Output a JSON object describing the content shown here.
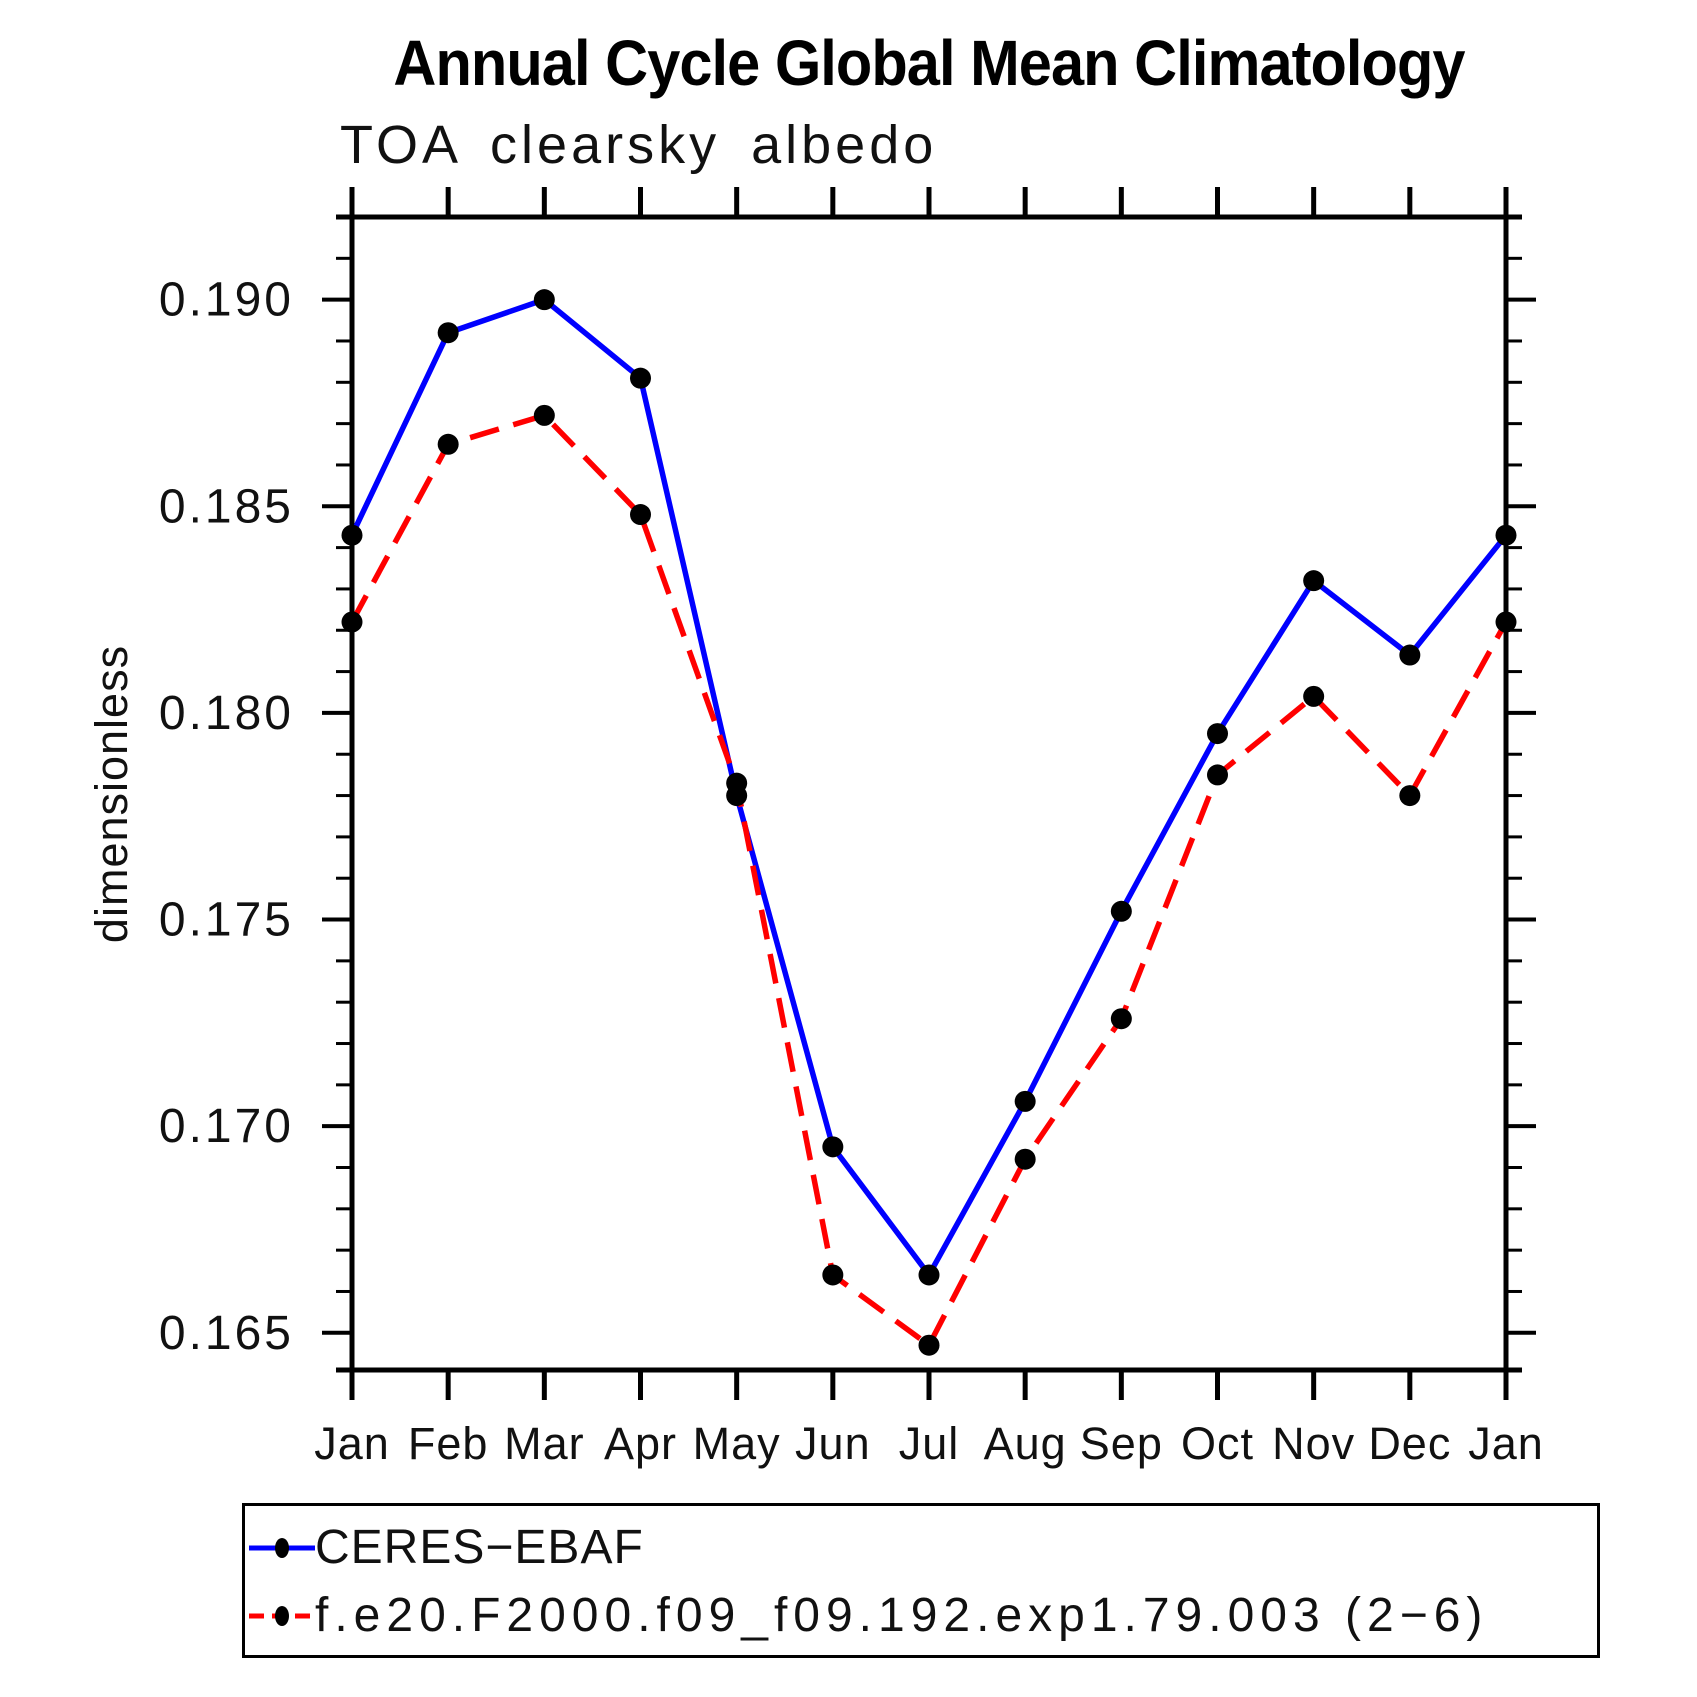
{
  "chart_data": {
    "type": "line",
    "title": "Annual Cycle Global Mean Climatology",
    "subtitle": "TOA clearsky albedo",
    "ylabel": "dimensionless",
    "xlabel": "",
    "x_categories": [
      "Jan",
      "Feb",
      "Mar",
      "Apr",
      "May",
      "Jun",
      "Jul",
      "Aug",
      "Sep",
      "Oct",
      "Nov",
      "Dec",
      "Jan"
    ],
    "ylim": [
      0.1641,
      0.192
    ],
    "y_major_ticks": [
      0.165,
      0.17,
      0.175,
      0.18,
      0.185,
      0.19
    ],
    "y_tick_labels": [
      "0.165",
      "0.170",
      "0.175",
      "0.180",
      "0.185",
      "0.190"
    ],
    "y_minor_step": 0.001,
    "grid": false,
    "legend_position": "below-left",
    "series": [
      {
        "name": "CERES−EBAF",
        "color": "#0000ff",
        "style": "solid",
        "marker": "filled-circle",
        "marker_color": "#000000",
        "values": [
          0.1843,
          0.1892,
          0.19,
          0.1881,
          0.178,
          0.1695,
          0.1664,
          0.1706,
          0.1752,
          0.1795,
          0.1832,
          0.1814,
          0.1843
        ]
      },
      {
        "name": "f.e20.F2000.f09_f09.192.exp1.79.003 (2−6)",
        "color": "#ff0000",
        "style": "dashed",
        "marker": "filled-circle",
        "marker_color": "#000000",
        "values": [
          0.1822,
          0.1865,
          0.1872,
          0.1848,
          0.1783,
          0.1664,
          0.1647,
          0.1692,
          0.1726,
          0.1785,
          0.1804,
          0.178,
          0.1822
        ]
      }
    ]
  }
}
